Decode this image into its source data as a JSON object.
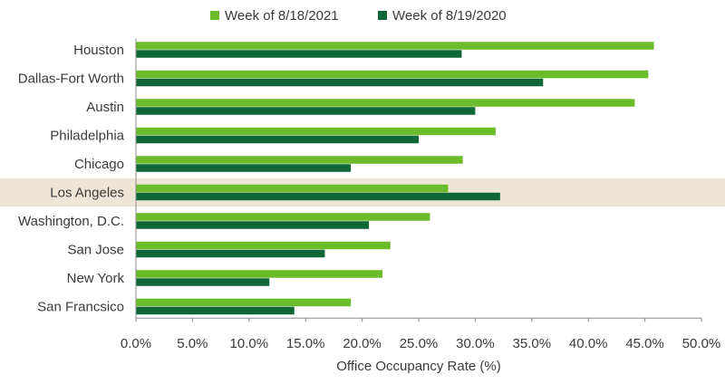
{
  "chart_data": {
    "type": "bar",
    "orientation": "horizontal",
    "title": "",
    "xlabel": "Office Occupancy Rate (%)",
    "ylabel": "",
    "xlim": [
      0,
      50
    ],
    "x_tick_values": [
      0,
      5,
      10,
      15,
      20,
      25,
      30,
      35,
      40,
      45,
      50
    ],
    "x_tick_labels": [
      "0.0%",
      "5.0%",
      "10.0%",
      "15.0%",
      "20.0%",
      "25.0%",
      "30.0%",
      "35.0%",
      "40.0%",
      "45.0%",
      "50.0%"
    ],
    "grid": false,
    "legend_position": "top-center",
    "categories": [
      "Houston",
      "Dallas-Fort Worth",
      "Austin",
      "Philadelphia",
      "Chicago",
      "Los Angeles",
      "Washington, D.C.",
      "San Jose",
      "New York",
      "San Francsico"
    ],
    "highlighted_category": "Los Angeles",
    "series": [
      {
        "name": "Week of 8/18/2021",
        "color": "#6cbb2a",
        "values": [
          45.8,
          45.3,
          44.1,
          31.8,
          28.9,
          27.6,
          26.0,
          22.5,
          21.8,
          19.0
        ]
      },
      {
        "name": "Week of 8/19/2020",
        "color": "#0f6637",
        "values": [
          28.8,
          36.0,
          30.0,
          25.0,
          19.0,
          32.2,
          20.6,
          16.7,
          11.8,
          14.0
        ]
      }
    ],
    "highlight_color": "#ede6d6",
    "axis_color": "#8c8c8c"
  }
}
